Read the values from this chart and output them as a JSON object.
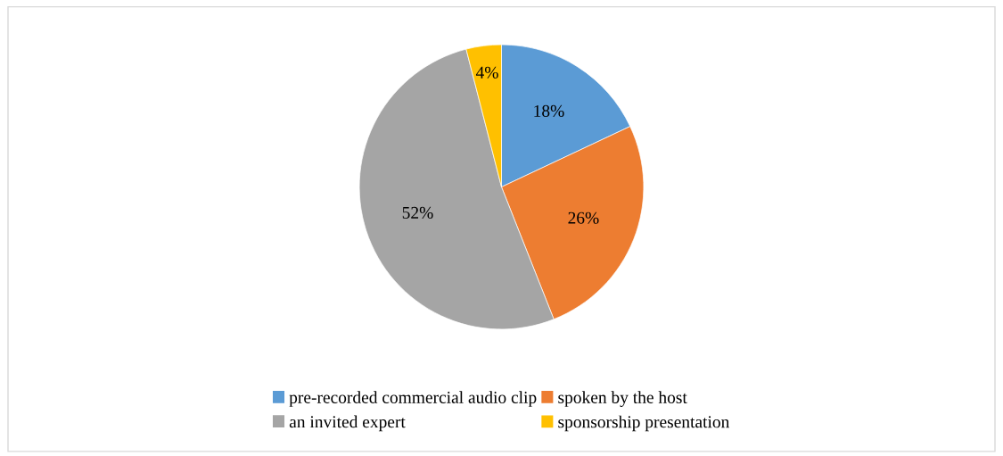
{
  "chart_data": {
    "type": "pie",
    "categories": [
      "pre-recorded commercial audio clip",
      "spoken by the host",
      "an invited expert",
      "sponsorship presentation"
    ],
    "values": [
      18,
      26,
      52,
      4
    ],
    "colors": [
      "#5b9bd5",
      "#ed7d31",
      "#a5a5a5",
      "#ffc000"
    ],
    "value_labels": [
      "18%",
      "26%",
      "52%",
      "4%"
    ],
    "legend": "bottom"
  }
}
